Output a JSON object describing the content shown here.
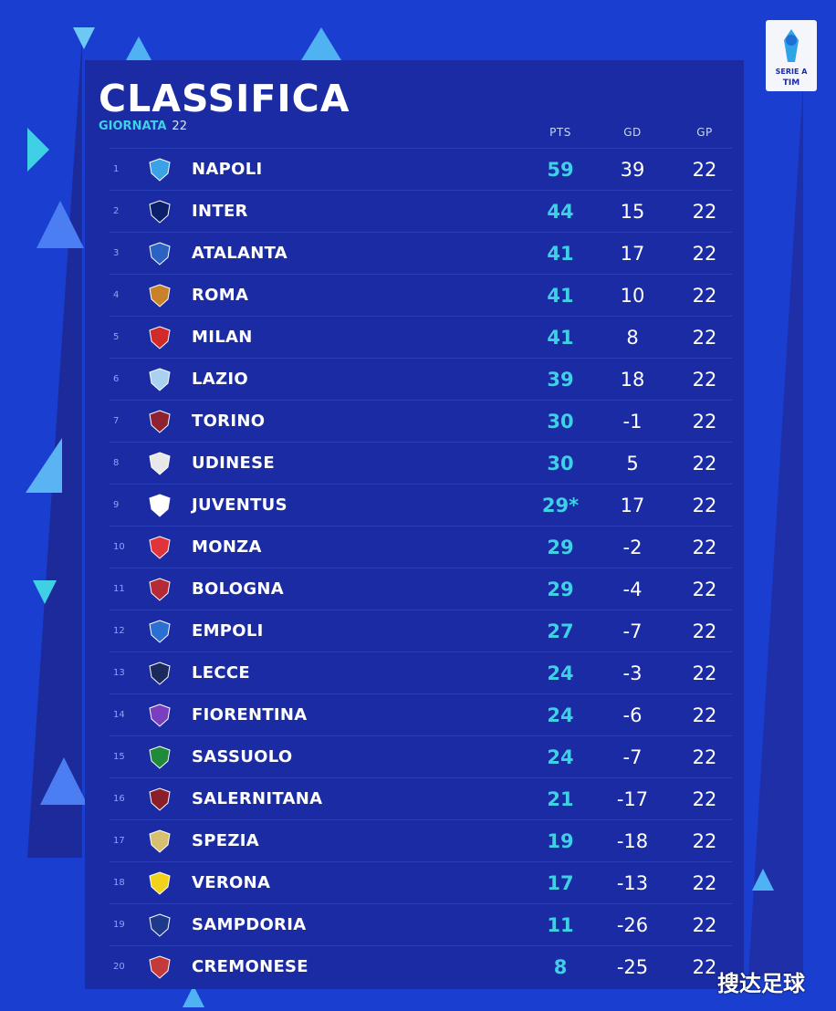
{
  "header": {
    "title": "CLASSIFICA",
    "round_label": "GIORNATA",
    "round_number": "22"
  },
  "logo": {
    "line1": "SERIE A",
    "line2": "TIM",
    "icon": "serie-a-logo"
  },
  "columns": {
    "pts": "PTS",
    "gd": "GD",
    "gp": "GP"
  },
  "table": [
    {
      "pos": "1",
      "team": "NAPOLI",
      "pts": "59",
      "gd": "39",
      "gp": "22",
      "crest_color": "#3aa3e6"
    },
    {
      "pos": "2",
      "team": "INTER",
      "pts": "44",
      "gd": "15",
      "gp": "22",
      "crest_color": "#0b1f6a"
    },
    {
      "pos": "3",
      "team": "ATALANTA",
      "pts": "41",
      "gd": "17",
      "gp": "22",
      "crest_color": "#2a63c2"
    },
    {
      "pos": "4",
      "team": "ROMA",
      "pts": "41",
      "gd": "10",
      "gp": "22",
      "crest_color": "#c8832a"
    },
    {
      "pos": "5",
      "team": "MILAN",
      "pts": "41",
      "gd": "8",
      "gp": "22",
      "crest_color": "#d12a2a"
    },
    {
      "pos": "6",
      "team": "LAZIO",
      "pts": "39",
      "gd": "18",
      "gp": "22",
      "crest_color": "#a8d2f0"
    },
    {
      "pos": "7",
      "team": "TORINO",
      "pts": "30",
      "gd": "-1",
      "gp": "22",
      "crest_color": "#8e2230"
    },
    {
      "pos": "8",
      "team": "UDINESE",
      "pts": "30",
      "gd": "5",
      "gp": "22",
      "crest_color": "#e8e8e8"
    },
    {
      "pos": "9",
      "team": "JUVENTUS",
      "pts": "29*",
      "gd": "17",
      "gp": "22",
      "crest_color": "#ffffff"
    },
    {
      "pos": "10",
      "team": "MONZA",
      "pts": "29",
      "gd": "-2",
      "gp": "22",
      "crest_color": "#e0343a"
    },
    {
      "pos": "11",
      "team": "BOLOGNA",
      "pts": "29",
      "gd": "-4",
      "gp": "22",
      "crest_color": "#b52a35"
    },
    {
      "pos": "12",
      "team": "EMPOLI",
      "pts": "27",
      "gd": "-7",
      "gp": "22",
      "crest_color": "#2a6fd1"
    },
    {
      "pos": "13",
      "team": "LECCE",
      "pts": "24",
      "gd": "-3",
      "gp": "22",
      "crest_color": "#1b2a5a"
    },
    {
      "pos": "14",
      "team": "FIORENTINA",
      "pts": "24",
      "gd": "-6",
      "gp": "22",
      "crest_color": "#7a3ec0"
    },
    {
      "pos": "15",
      "team": "SASSUOLO",
      "pts": "24",
      "gd": "-7",
      "gp": "22",
      "crest_color": "#1e8a3a"
    },
    {
      "pos": "16",
      "team": "SALERNITANA",
      "pts": "21",
      "gd": "-17",
      "gp": "22",
      "crest_color": "#8a1f2a"
    },
    {
      "pos": "17",
      "team": "SPEZIA",
      "pts": "19",
      "gd": "-18",
      "gp": "22",
      "crest_color": "#d9c070"
    },
    {
      "pos": "18",
      "team": "VERONA",
      "pts": "17",
      "gd": "-13",
      "gp": "22",
      "crest_color": "#f2d21b"
    },
    {
      "pos": "19",
      "team": "SAMPDORIA",
      "pts": "11",
      "gd": "-26",
      "gp": "22",
      "crest_color": "#1d3a8a"
    },
    {
      "pos": "20",
      "team": "CREMONESE",
      "pts": "8",
      "gd": "-25",
      "gp": "22",
      "crest_color": "#c43a3a"
    }
  ],
  "watermark": "搜达足球",
  "colors": {
    "background": "#1a3ed0",
    "panel": "#1a2ba4",
    "accent": "#3fd0e6"
  }
}
